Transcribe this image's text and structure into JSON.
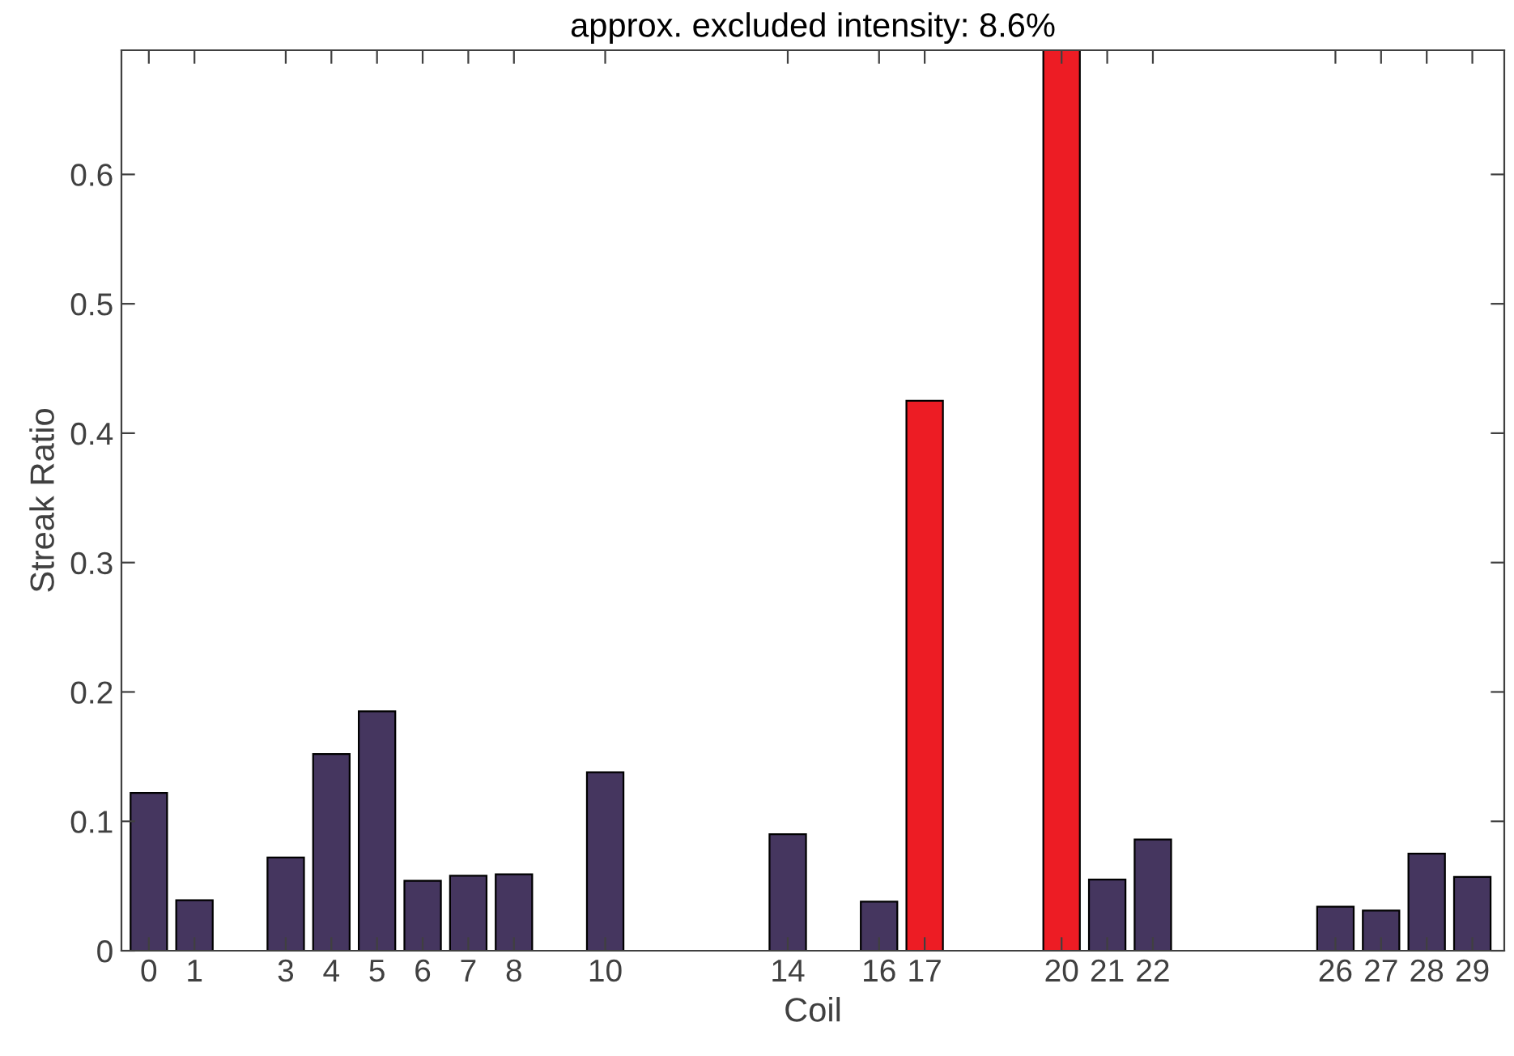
{
  "chart_data": {
    "type": "bar",
    "title": "approx. excluded intensity: 8.6%",
    "xlabel": "Coil",
    "ylabel": "Streak Ratio",
    "x": [
      0,
      1,
      3,
      4,
      5,
      6,
      7,
      8,
      10,
      14,
      16,
      17,
      20,
      21,
      22,
      26,
      27,
      28,
      29
    ],
    "values": [
      0.122,
      0.039,
      0.072,
      0.152,
      0.185,
      0.054,
      0.058,
      0.059,
      0.138,
      0.09,
      0.038,
      0.425,
      0.696,
      0.055,
      0.086,
      0.034,
      0.031,
      0.075,
      0.057
    ],
    "colors": [
      "#45365f",
      "#45365f",
      "#45365f",
      "#45365f",
      "#45365f",
      "#45365f",
      "#45365f",
      "#45365f",
      "#45365f",
      "#45365f",
      "#45365f",
      "#ed1c24",
      "#ed1c24",
      "#45365f",
      "#45365f",
      "#45365f",
      "#45365f",
      "#45365f",
      "#45365f"
    ],
    "xlim": [
      -0.6,
      29.7
    ],
    "xticks": [
      0,
      1,
      3,
      4,
      5,
      6,
      7,
      8,
      10,
      14,
      16,
      17,
      20,
      21,
      22,
      26,
      27,
      28,
      29
    ],
    "ylim": [
      0,
      0.696
    ],
    "yticks": [
      0,
      0.1,
      0.2,
      0.3,
      0.4,
      0.5,
      0.6
    ],
    "grid": false,
    "legend": false
  }
}
